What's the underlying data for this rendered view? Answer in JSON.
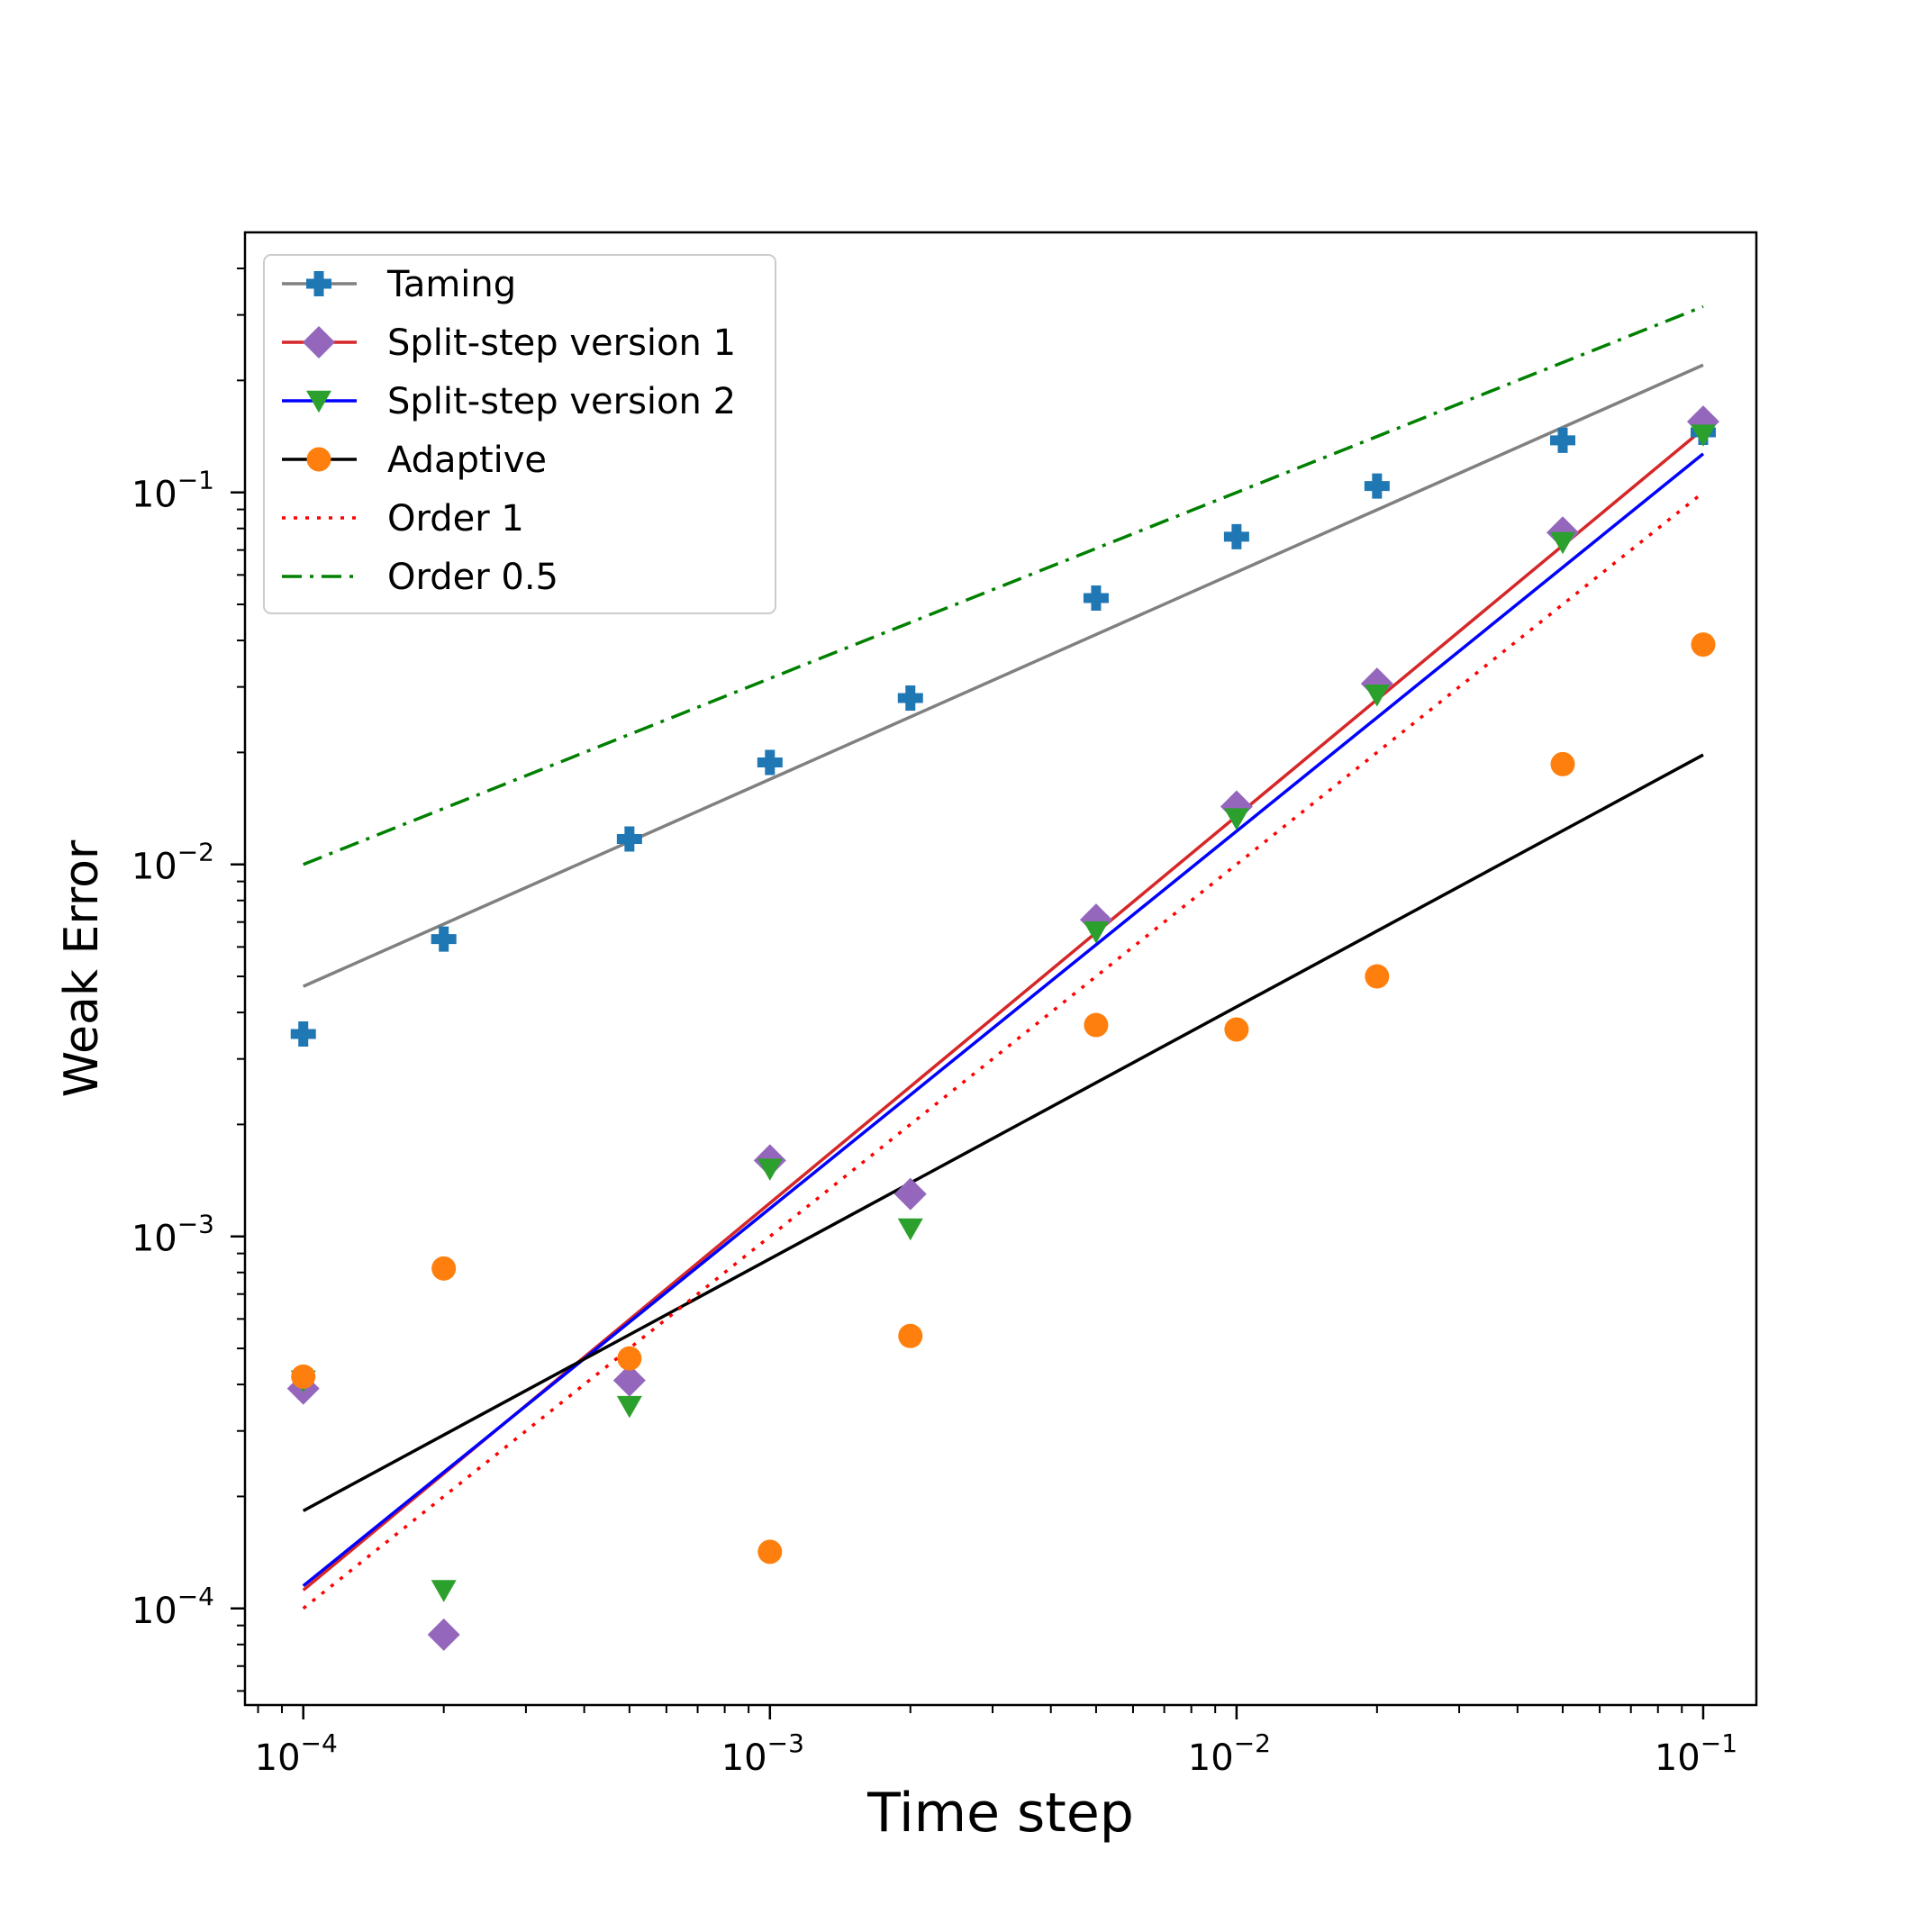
{
  "chart_data": {
    "type": "line",
    "title": "",
    "xlabel": "Time step",
    "ylabel": "Weak Error",
    "xscale": "log",
    "yscale": "log",
    "xlim": [
      7.5e-05,
      0.13
    ],
    "ylim": [
      5.5e-05,
      0.5
    ],
    "grid": false,
    "legend_position": "top-left",
    "x_ticks": [
      {
        "value": 0.0001,
        "base": "10",
        "exp": "−4"
      },
      {
        "value": 0.001,
        "base": "10",
        "exp": "−3"
      },
      {
        "value": 0.01,
        "base": "10",
        "exp": "−2"
      },
      {
        "value": 0.1,
        "base": "10",
        "exp": "−1"
      }
    ],
    "y_ticks": [
      {
        "value": 0.0001,
        "base": "10",
        "exp": "−4"
      },
      {
        "value": 0.001,
        "base": "10",
        "exp": "−3"
      },
      {
        "value": 0.01,
        "base": "10",
        "exp": "−2"
      },
      {
        "value": 0.1,
        "base": "10",
        "exp": "−1"
      }
    ],
    "x": [
      0.0001,
      0.0002,
      0.0005,
      0.001,
      0.002,
      0.005,
      0.01,
      0.02,
      0.05,
      0.1
    ],
    "series": [
      {
        "name": "Taming",
        "marker": "plus",
        "marker_color": "#1f77b4",
        "line_color": "#808080",
        "line_style": "solid",
        "values": [
          0.0035,
          0.0063,
          0.0117,
          0.0188,
          0.028,
          0.052,
          0.076,
          0.104,
          0.138,
          0.145
        ],
        "fit": {
          "x": [
            0.0001,
            0.1
          ],
          "y": [
            0.0047,
            0.22
          ]
        }
      },
      {
        "name": "Split-step version 1",
        "marker": "diamond",
        "marker_color": "#9467bd",
        "line_color": "#d62728",
        "line_style": "solid",
        "values": [
          0.00039,
          8.5e-05,
          0.00041,
          0.0016,
          0.0013,
          0.0071,
          0.0143,
          0.0306,
          0.078,
          0.155
        ],
        "fit": {
          "x": [
            0.0001,
            0.1
          ],
          "y": [
            0.000112,
            0.148
          ]
        }
      },
      {
        "name": "Split-step version 2",
        "marker": "triangle-down",
        "marker_color": "#2ca02c",
        "line_color": "#0000ff",
        "line_style": "solid",
        "values": [
          0.00041,
          0.000112,
          0.00035,
          0.00152,
          0.00105,
          0.0066,
          0.0133,
          0.0286,
          0.0735,
          0.143
        ],
        "fit": {
          "x": [
            0.0001,
            0.1
          ],
          "y": [
            0.000115,
            0.127
          ]
        }
      },
      {
        "name": "Adaptive",
        "marker": "circle",
        "marker_color": "#ff7f0e",
        "line_color": "#000000",
        "line_style": "solid",
        "values": [
          0.00042,
          0.00082,
          0.00047,
          0.000142,
          0.00054,
          0.0037,
          0.0036,
          0.005,
          0.0186,
          0.039
        ],
        "fit": {
          "x": [
            0.0001,
            0.1
          ],
          "y": [
            0.000183,
            0.0197
          ]
        }
      },
      {
        "name": "Order 1",
        "marker": "none",
        "line_color": "#ff0000",
        "line_style": "dotted",
        "line": {
          "x": [
            0.0001,
            0.1
          ],
          "y": [
            0.0001,
            0.1
          ]
        }
      },
      {
        "name": "Order 0.5",
        "marker": "none",
        "line_color": "#008000",
        "line_style": "dashdot",
        "line": {
          "x": [
            0.0001,
            0.1
          ],
          "y": [
            0.01,
            0.316
          ]
        }
      }
    ]
  }
}
